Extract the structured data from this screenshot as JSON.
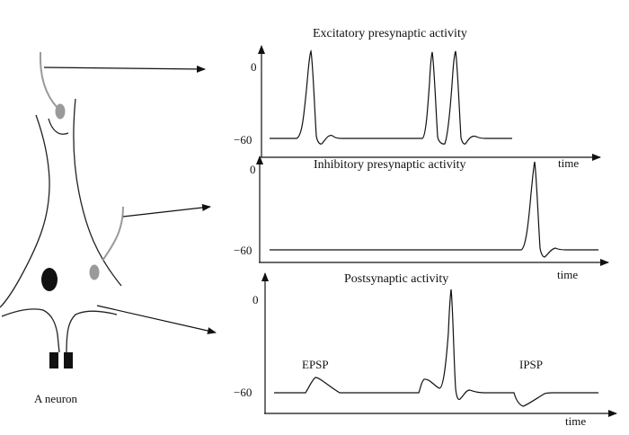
{
  "neuron": {
    "caption": "A neuron",
    "colors": {
      "body": "#222222",
      "presynaptic": "#9a9a9a",
      "nucleus": "#111111"
    }
  },
  "panels": [
    {
      "id": "excitatory",
      "title": "Excitatory presynaptic activity",
      "xlabel": "time",
      "y_ticks": [
        "0",
        "−60"
      ]
    },
    {
      "id": "inhibitory",
      "title": "Inhibitory presynaptic activity",
      "xlabel": "time",
      "y_ticks": [
        "0",
        "−60"
      ]
    },
    {
      "id": "postsynaptic",
      "title": "Postsynaptic activity",
      "xlabel": "time",
      "y_ticks": [
        "0",
        "−60"
      ],
      "annotations": [
        "EPSP",
        "IPSP"
      ]
    }
  ],
  "colors": {
    "line": "#111111",
    "background": "#ffffff"
  }
}
